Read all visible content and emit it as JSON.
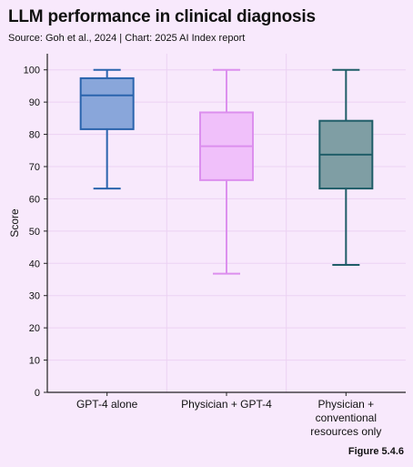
{
  "header": {
    "title": "LLM performance in clinical diagnosis",
    "subtitle": "Source: Goh et al., 2024 | Chart: 2025 AI Index report",
    "figure": "Figure 5.4.6"
  },
  "chart_data": {
    "type": "box",
    "title": "LLM performance in clinical diagnosis",
    "xlabel": "",
    "ylabel": "Score",
    "ylim": [
      0,
      105
    ],
    "yticks": [
      0,
      10,
      20,
      30,
      40,
      50,
      60,
      70,
      80,
      90,
      100
    ],
    "grid": true,
    "legend": "none",
    "categories": [
      {
        "label_lines": [
          "GPT-4 alone"
        ],
        "min": 63.2,
        "q1": 81.6,
        "median": 92.1,
        "q3": 97.4,
        "max": 100,
        "fill": "#89a6da",
        "stroke": "#2a64ad"
      },
      {
        "label_lines": [
          "Physician + GPT-4"
        ],
        "min": 36.8,
        "q1": 65.8,
        "median": 76.3,
        "q3": 86.8,
        "max": 100,
        "fill": "#f0c0fa",
        "stroke": "#dc8fee"
      },
      {
        "label_lines": [
          "Physician +",
          "conventional",
          "resources only"
        ],
        "min": 39.5,
        "q1": 63.2,
        "median": 73.7,
        "q3": 84.2,
        "max": 100,
        "fill": "#7f9ea4",
        "stroke": "#1f5d68"
      }
    ]
  }
}
